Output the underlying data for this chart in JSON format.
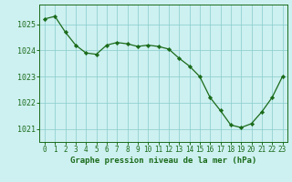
{
  "x": [
    0,
    1,
    2,
    3,
    4,
    5,
    6,
    7,
    8,
    9,
    10,
    11,
    12,
    13,
    14,
    15,
    16,
    17,
    18,
    19,
    20,
    21,
    22,
    23
  ],
  "y": [
    1025.2,
    1025.3,
    1024.7,
    1024.2,
    1023.9,
    1023.85,
    1024.2,
    1024.3,
    1024.25,
    1024.15,
    1024.2,
    1024.15,
    1024.05,
    1023.7,
    1023.4,
    1023.0,
    1022.2,
    1021.7,
    1021.15,
    1021.05,
    1021.2,
    1021.65,
    1022.2,
    1023.0
  ],
  "line_color": "#1a6b1a",
  "marker_color": "#1a6b1a",
  "bg_color": "#cdf0f0",
  "grid_color": "#88cccc",
  "border_color": "#1a6b1a",
  "xlabel": "Graphe pression niveau de la mer (hPa)",
  "xlabel_color": "#1a6b1a",
  "tick_color": "#1a6b1a",
  "ylim": [
    1020.5,
    1025.75
  ],
  "yticks": [
    1021,
    1022,
    1023,
    1024,
    1025
  ],
  "xticks": [
    0,
    1,
    2,
    3,
    4,
    5,
    6,
    7,
    8,
    9,
    10,
    11,
    12,
    13,
    14,
    15,
    16,
    17,
    18,
    19,
    20,
    21,
    22,
    23
  ],
  "tick_fontsize": 5.5,
  "xlabel_fontsize": 6.5,
  "ytick_fontsize": 6.0
}
